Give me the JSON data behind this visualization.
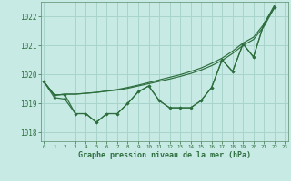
{
  "background_color": "#c8eae4",
  "grid_color": "#a8d4cc",
  "line_color": "#2d6e3e",
  "xlabel": "Graphe pression niveau de la mer (hPa)",
  "xlim": [
    -0.3,
    23.3
  ],
  "ylim": [
    1017.7,
    1022.5
  ],
  "yticks": [
    1018,
    1019,
    1020,
    1021,
    1022
  ],
  "xticks": [
    0,
    1,
    2,
    3,
    4,
    5,
    6,
    7,
    8,
    9,
    10,
    11,
    12,
    13,
    14,
    15,
    16,
    17,
    18,
    19,
    20,
    21,
    22,
    23
  ],
  "series_zigzag1": [
    1019.75,
    1019.3,
    1019.3,
    1018.65,
    1018.65,
    1018.35,
    1018.65,
    1018.65,
    1019.0,
    1019.4,
    1019.6,
    1019.1,
    1018.85,
    1018.85,
    1018.85,
    1019.1,
    1019.55,
    1020.5,
    1020.1,
    1021.05,
    1020.6,
    1021.75,
    1022.3
  ],
  "series_zigzag2": [
    1019.75,
    1019.2,
    1019.15,
    1018.65,
    1018.65,
    1018.35,
    1018.65,
    1018.65,
    1019.0,
    1019.4,
    1019.6,
    1019.1,
    1018.85,
    1018.85,
    1018.85,
    1019.1,
    1019.55,
    1020.5,
    1020.1,
    1021.05,
    1020.6,
    1021.75,
    1022.3
  ],
  "series_smooth1": [
    1019.75,
    1019.28,
    1019.32,
    1019.32,
    1019.35,
    1019.38,
    1019.42,
    1019.46,
    1019.52,
    1019.6,
    1019.68,
    1019.76,
    1019.84,
    1019.93,
    1020.03,
    1020.15,
    1020.3,
    1020.48,
    1020.72,
    1021.0,
    1021.2,
    1021.65,
    1022.3
  ],
  "series_smooth2": [
    1019.75,
    1019.28,
    1019.32,
    1019.32,
    1019.35,
    1019.38,
    1019.43,
    1019.48,
    1019.55,
    1019.63,
    1019.72,
    1019.81,
    1019.9,
    1019.99,
    1020.1,
    1020.22,
    1020.38,
    1020.56,
    1020.8,
    1021.08,
    1021.28,
    1021.73,
    1022.38
  ]
}
